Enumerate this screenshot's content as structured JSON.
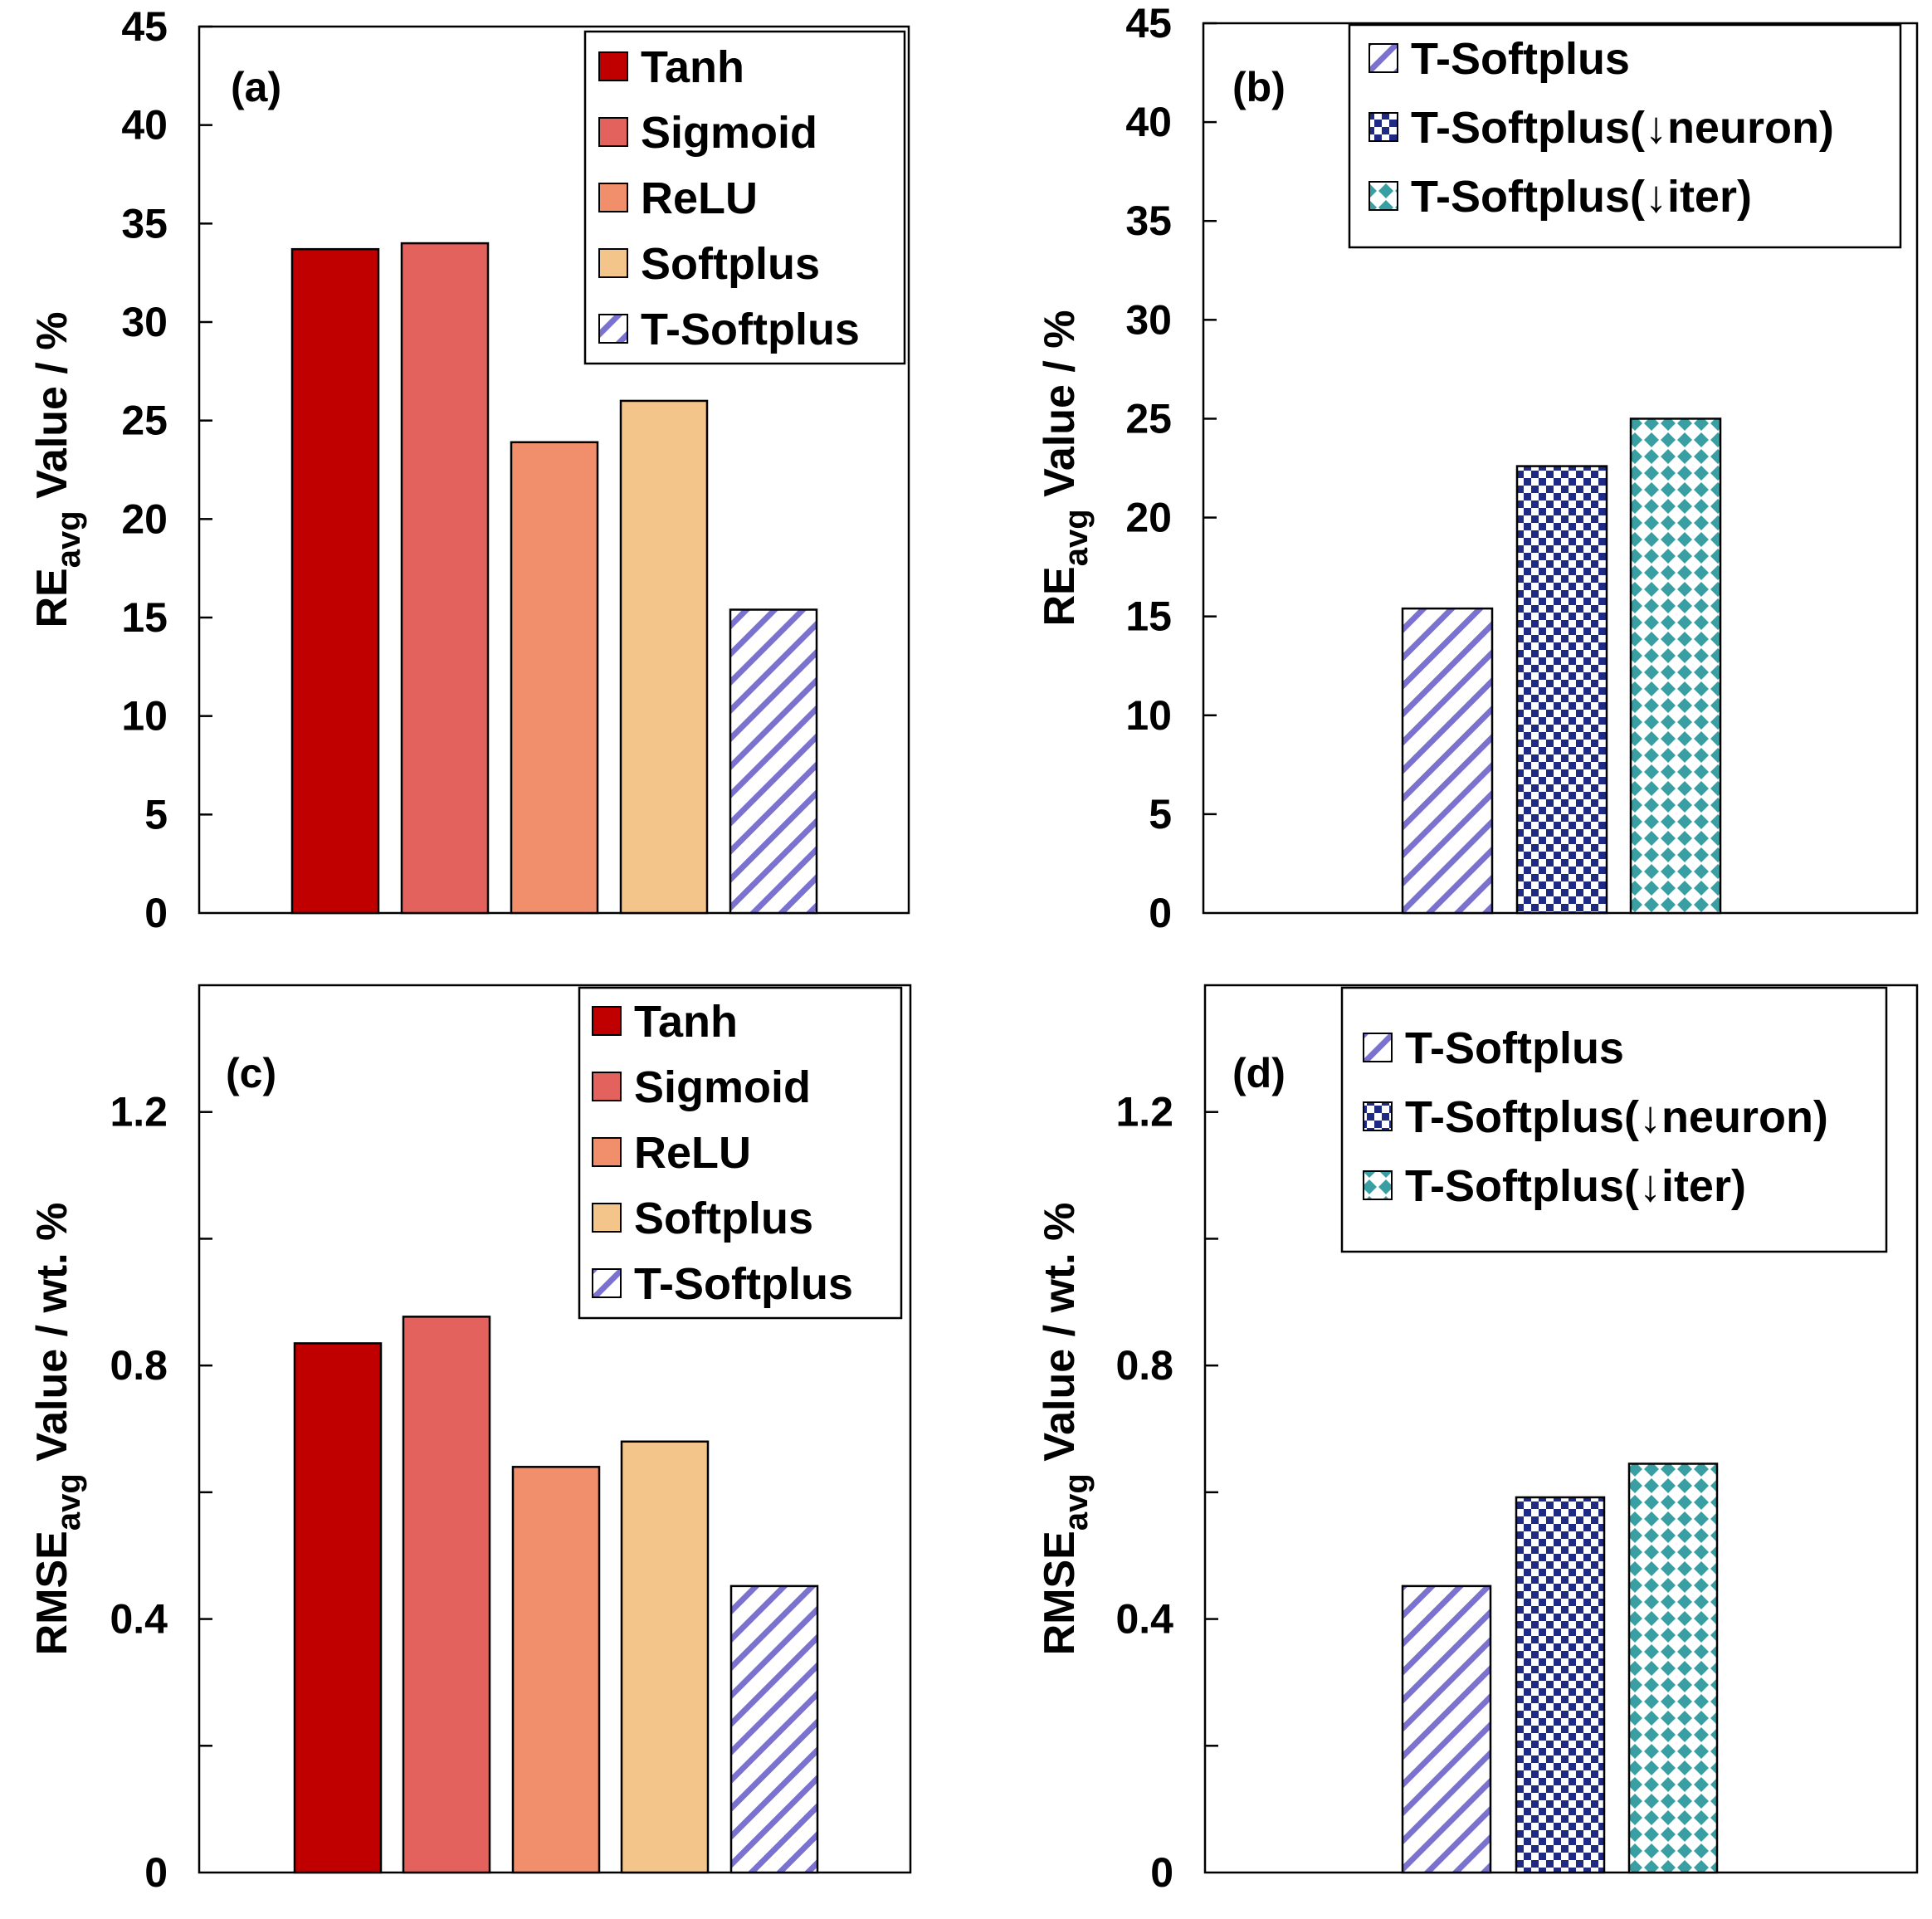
{
  "styles": {
    "Tanh": {
      "fill": "#c00000",
      "pattern": "solid"
    },
    "Sigmoid": {
      "fill": "#e3625e",
      "pattern": "solid"
    },
    "ReLU": {
      "fill": "#f18f6d",
      "pattern": "solid"
    },
    "Softplus": {
      "fill": "#f4c58b",
      "pattern": "solid"
    },
    "T-Softplus": {
      "fill": "#7b72cf",
      "pattern": "hatch"
    },
    "T-Softplus(↓neuron)": {
      "fill": "#1f2a85",
      "pattern": "check"
    },
    "T-Softplus(↓iter)": {
      "fill": "#3a9fa3",
      "pattern": "diamond"
    }
  },
  "chart_data": [
    {
      "id": "a",
      "type": "bar",
      "panel_label": "(a)",
      "ylabel_main": "RE",
      "ylabel_sub": "avg",
      "ylabel_rest": " Value / %",
      "ylim": [
        0,
        45
      ],
      "yticks": [
        "0",
        "5",
        "10",
        "15",
        "20",
        "25",
        "30",
        "35",
        "40",
        "45"
      ],
      "tick_values": [
        0,
        5,
        10,
        15,
        20,
        25,
        30,
        35,
        40,
        45
      ],
      "minor_ticks": [],
      "categories": [
        "Tanh",
        "Sigmoid",
        "ReLU",
        "Softplus",
        "T-Softplus"
      ],
      "values": [
        33.7,
        34.0,
        23.9,
        26.0,
        15.4
      ],
      "legend": [
        "Tanh",
        "Sigmoid",
        "ReLU",
        "Softplus",
        "T-Softplus"
      ],
      "legend_position": "top-right"
    },
    {
      "id": "b",
      "type": "bar",
      "panel_label": "(b)",
      "ylabel_main": "RE",
      "ylabel_sub": "avg",
      "ylabel_rest": " Value / %",
      "ylim": [
        0,
        45
      ],
      "yticks": [
        "0",
        "5",
        "10",
        "15",
        "20",
        "25",
        "30",
        "35",
        "40",
        "45"
      ],
      "tick_values": [
        0,
        5,
        10,
        15,
        20,
        25,
        30,
        35,
        40,
        45
      ],
      "minor_ticks": [],
      "categories": [
        "T-Softplus",
        "T-Softplus(↓neuron)",
        "T-Softplus(↓iter)"
      ],
      "values": [
        15.4,
        22.6,
        25.0
      ],
      "legend": [
        "T-Softplus",
        "T-Softplus(↓neuron)",
        "T-Softplus(↓iter)"
      ],
      "legend_position": "top-right"
    },
    {
      "id": "c",
      "type": "bar",
      "panel_label": "(c)",
      "ylabel_main": "RMSE",
      "ylabel_sub": "avg",
      "ylabel_rest": " Value  / wt. %",
      "ylim": [
        0,
        1.4
      ],
      "yticks": [
        "0",
        "0.4",
        "0.8",
        "1.2"
      ],
      "tick_values": [
        0,
        0.4,
        0.8,
        1.2
      ],
      "minor_ticks": [
        0.2,
        0.6,
        1.0
      ],
      "categories": [
        "Tanh",
        "Sigmoid",
        "ReLU",
        "Softplus",
        "T-Softplus"
      ],
      "values": [
        0.835,
        0.877,
        0.64,
        0.68,
        0.452
      ],
      "legend": [
        "Tanh",
        "Sigmoid",
        "ReLU",
        "Softplus",
        "T-Softplus"
      ],
      "legend_position": "top-right"
    },
    {
      "id": "d",
      "type": "bar",
      "panel_label": "(d)",
      "ylabel_main": "RMSE",
      "ylabel_sub": "avg",
      "ylabel_rest": " Value  / wt. %",
      "ylim": [
        0,
        1.4
      ],
      "yticks": [
        "0",
        "0.4",
        "0.8",
        "1.2"
      ],
      "tick_values": [
        0,
        0.4,
        0.8,
        1.2
      ],
      "minor_ticks": [
        0.2,
        0.6,
        1.0
      ],
      "categories": [
        "T-Softplus",
        "T-Softplus(↓neuron)",
        "T-Softplus(↓iter)"
      ],
      "values": [
        0.452,
        0.592,
        0.645
      ],
      "legend": [
        "T-Softplus",
        "T-Softplus(↓neuron)",
        "T-Softplus(↓iter)"
      ],
      "legend_position": "top-right"
    }
  ]
}
